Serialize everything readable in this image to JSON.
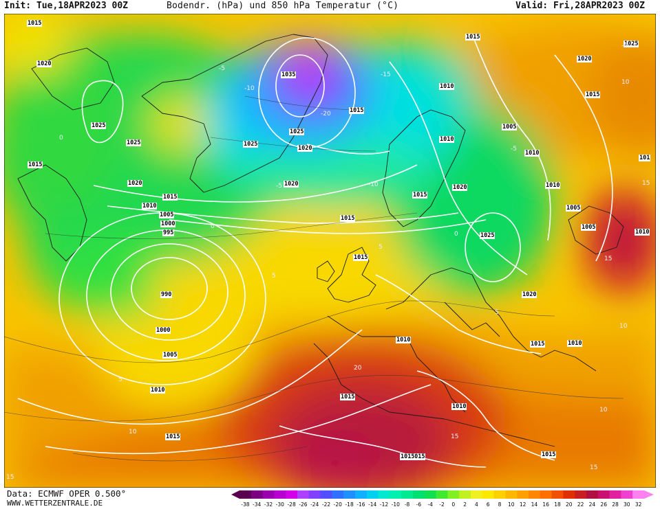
{
  "header": {
    "init": "Init: Tue,18APR2023 00Z",
    "title": "Bodendr. (hPa) und 850 hPa Temperatur (°C)",
    "valid": "Valid: Fri,28APR2023 00Z"
  },
  "footer": {
    "source": "Data: ECMWF OPER 0.500°",
    "website": "WWW.WETTERZENTRALE.DE"
  },
  "legend": {
    "ticks": [
      "-38",
      "-34",
      "-32",
      "-30",
      "-28",
      "-26",
      "-24",
      "-22",
      "-20",
      "-18",
      "-16",
      "-14",
      "-12",
      "-10",
      "-8",
      "-6",
      "-4",
      "-2",
      "0",
      "2",
      "4",
      "6",
      "8",
      "10",
      "12",
      "14",
      "16",
      "18",
      "20",
      "22",
      "24",
      "26",
      "28",
      "30",
      "32"
    ],
    "colors": [
      "#5a0050",
      "#7a0080",
      "#9a00b0",
      "#b800d0",
      "#d200e8",
      "#b040ff",
      "#8040ff",
      "#5050ff",
      "#3070ff",
      "#2090ff",
      "#10b0ff",
      "#00d0f0",
      "#00e8d0",
      "#00f0b0",
      "#00e890",
      "#00e070",
      "#10e050",
      "#40e830",
      "#80f020",
      "#c0f020",
      "#f0f020",
      "#ffe800",
      "#ffd000",
      "#ffb800",
      "#ffa000",
      "#ff8800",
      "#ff7000",
      "#f05000",
      "#e03000",
      "#c82020",
      "#b01040",
      "#c81070",
      "#e020a0",
      "#f040d0",
      "#ff80f0"
    ]
  },
  "isobar_labels": [
    {
      "text": "1015"
    },
    {
      "text": "1020"
    },
    {
      "text": "1035"
    },
    {
      "text": "1015"
    },
    {
      "text": "1025"
    },
    {
      "text": "1025"
    },
    {
      "text": "1025"
    },
    {
      "text": "1025"
    },
    {
      "text": "1020"
    },
    {
      "text": "1015"
    },
    {
      "text": "1010"
    },
    {
      "text": "1015"
    },
    {
      "text": "1020"
    },
    {
      "text": "1020"
    },
    {
      "text": "1015"
    },
    {
      "text": "1010"
    },
    {
      "text": "1005"
    },
    {
      "text": "1000"
    },
    {
      "text": "995"
    },
    {
      "text": "990"
    },
    {
      "text": "1000"
    },
    {
      "text": "1005"
    },
    {
      "text": "1010"
    },
    {
      "text": "1015"
    },
    {
      "text": "1015"
    },
    {
      "text": "1015"
    },
    {
      "text": "1010"
    },
    {
      "text": "1005"
    },
    {
      "text": "1010"
    },
    {
      "text": "1015"
    },
    {
      "text": "1020"
    },
    {
      "text": "1025"
    },
    {
      "text": "1020"
    },
    {
      "text": "1015"
    },
    {
      "text": "1010"
    },
    {
      "text": "1020"
    },
    {
      "text": "1015"
    },
    {
      "text": "1015"
    },
    {
      "text": "1010"
    },
    {
      "text": "1015"
    },
    {
      "text": "1010"
    },
    {
      "text": "1005"
    },
    {
      "text": "1005"
    },
    {
      "text": "1010"
    },
    {
      "text": "1025"
    },
    {
      "text": "1015"
    },
    {
      "text": "1010"
    },
    {
      "text": "1015"
    },
    {
      "text": "1015"
    },
    {
      "text": "101"
    }
  ],
  "temp_labels": [
    "-5",
    "-10",
    "-15",
    "-20",
    "-5",
    "-10",
    "-5",
    "0",
    "0",
    "5",
    "5",
    "5",
    "10",
    "15",
    "20",
    "10",
    "15",
    "5",
    "10",
    "15",
    "0",
    "-5",
    "15",
    "10",
    "15"
  ]
}
